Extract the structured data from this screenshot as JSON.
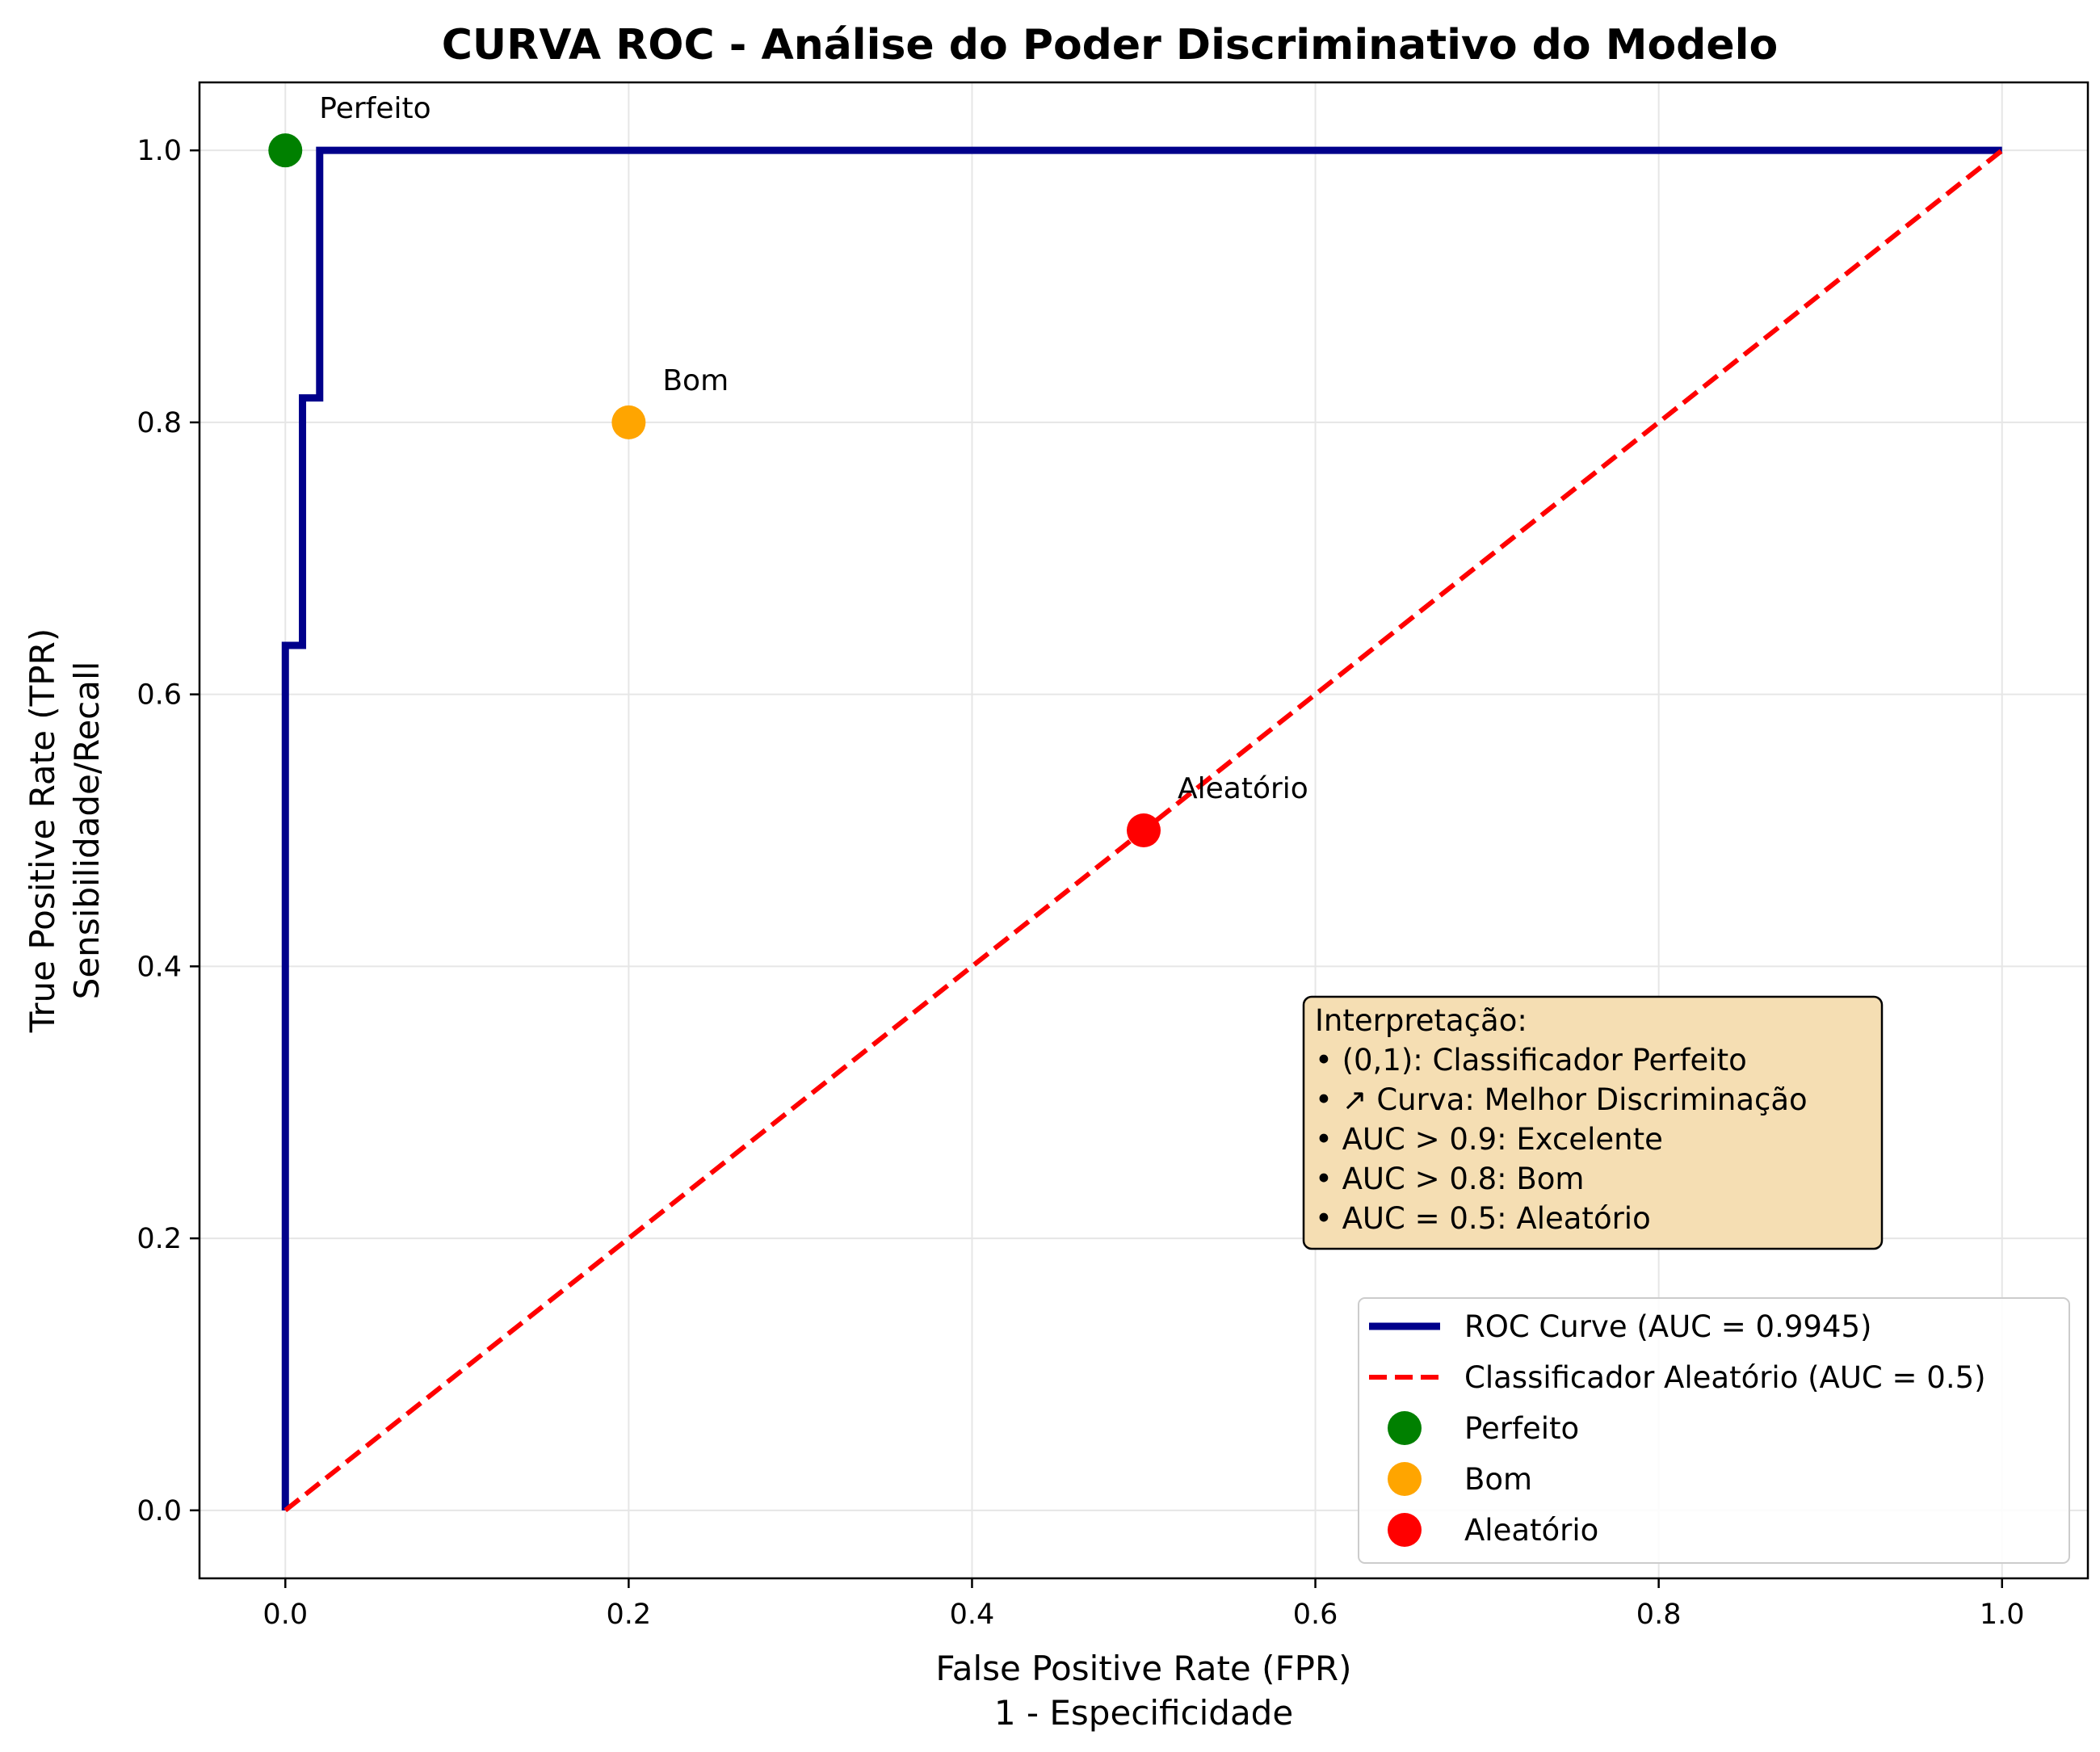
{
  "chart_data": {
    "type": "line",
    "title": "CURVA ROC - Análise do Poder Discriminativo do Modelo",
    "xlabel": "False Positive Rate (FPR)",
    "xlabel2": "1 - Especificidade",
    "ylabel": "True Positive Rate (TPR)",
    "ylabel2": "Sensibilidade/Recall",
    "xlim": [
      -0.05,
      1.05
    ],
    "ylim": [
      -0.05,
      1.05
    ],
    "xticks": [
      0.0,
      0.2,
      0.4,
      0.6,
      0.8,
      1.0
    ],
    "yticks": [
      0.0,
      0.2,
      0.4,
      0.6,
      0.8,
      1.0
    ],
    "grid": true,
    "legend_position": "lower right",
    "series": [
      {
        "name": "ROC Curve (AUC = 0.9945)",
        "style": "solid",
        "color": "#00008b",
        "x": [
          0.0,
          0.0,
          0.01,
          0.01,
          0.02,
          0.02,
          1.0
        ],
        "y": [
          0.0,
          0.636,
          0.636,
          0.818,
          0.818,
          1.0,
          1.0
        ]
      },
      {
        "name": "Classificador Aleatório (AUC = 0.5)",
        "style": "dashed",
        "color": "#ff0000",
        "x": [
          0.0,
          1.0
        ],
        "y": [
          0.0,
          1.0
        ]
      }
    ],
    "points": [
      {
        "name": "Perfeito",
        "label": "Perfeito",
        "x": 0.0,
        "y": 1.0,
        "color": "#008000"
      },
      {
        "name": "Bom",
        "label": "Bom",
        "x": 0.2,
        "y": 0.8,
        "color": "#ffa500"
      },
      {
        "name": "Aleatório",
        "label": "Aleatório",
        "x": 0.5,
        "y": 0.5,
        "color": "#ff0000"
      }
    ],
    "annotation_box": {
      "lines": [
        "Interpretação:",
        "• (0,1): Classificador Perfeito",
        "• ↗ Curva: Melhor Discriminação",
        "• AUC > 0.9: Excelente",
        "• AUC > 0.8: Bom",
        "• AUC = 0.5: Aleatório"
      ],
      "background": "#f5deb3"
    }
  }
}
